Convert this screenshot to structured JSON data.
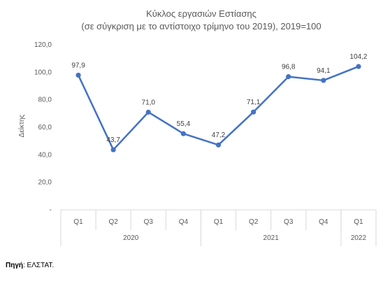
{
  "chart_data": {
    "type": "line",
    "title": "Κύκλος εργασιών Εστίασης",
    "subtitle": "(σε σύγκριση με το αντίστοιχο τρίμηνο του 2019), 2019=100",
    "ylabel": "Δείκτης",
    "xlabel": "",
    "ylim": [
      0,
      120
    ],
    "yticks": [
      {
        "value": 0,
        "label": "-"
      },
      {
        "value": 20,
        "label": "20,0"
      },
      {
        "value": 40,
        "label": "40,0"
      },
      {
        "value": 60,
        "label": "60,0"
      },
      {
        "value": 80,
        "label": "80,0"
      },
      {
        "value": 100,
        "label": "100,0"
      },
      {
        "value": 120,
        "label": "120,0"
      }
    ],
    "categories": [
      "Q1",
      "Q2",
      "Q3",
      "Q4",
      "Q1",
      "Q2",
      "Q3",
      "Q4",
      "Q1"
    ],
    "groups": [
      {
        "label": "2020",
        "count": 4
      },
      {
        "label": "2021",
        "count": 4
      },
      {
        "label": "2022",
        "count": 1
      }
    ],
    "series": [
      {
        "values": [
          97.9,
          43.7,
          71.0,
          55.4,
          47.2,
          71.1,
          96.8,
          94.1,
          104.2
        ],
        "labels": [
          "97,9",
          "43,7",
          "71,0",
          "55,4",
          "47,2",
          "71,1",
          "96,8",
          "94,1",
          "104,2"
        ],
        "color": "#4472C4"
      }
    ],
    "grid": false,
    "legend": "none"
  },
  "source": {
    "label": "Πηγή",
    "text": ": ΕΛΣΤΑΤ."
  }
}
